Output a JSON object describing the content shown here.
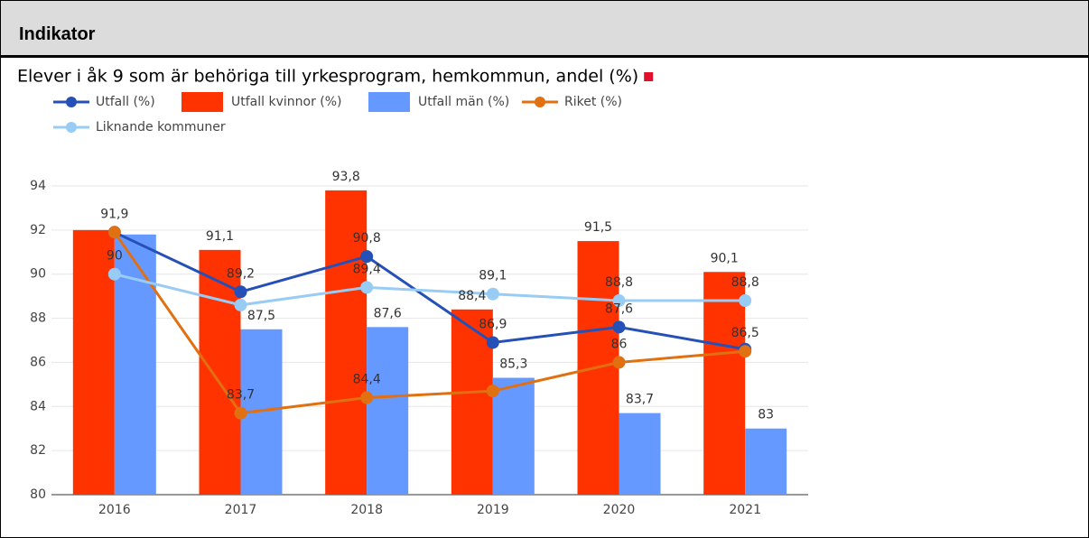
{
  "header": {
    "title": "Indikator"
  },
  "chart_data": {
    "type": "bar",
    "title": "Elever i åk 9 som är behöriga till yrkesprogram, hemkommun, andel (%)",
    "categories": [
      "2016",
      "2017",
      "2018",
      "2019",
      "2020",
      "2021"
    ],
    "series": [
      {
        "name": "Utfall (%)",
        "type": "line",
        "color": "#2550b8",
        "values": [
          91.9,
          89.2,
          90.8,
          86.9,
          87.6,
          86.6
        ],
        "value_labels": [
          "91,9",
          "89,2",
          "90,8",
          "86,9",
          "87,6",
          null
        ]
      },
      {
        "name": "Utfall kvinnor (%)",
        "type": "bar",
        "color": "#ff3300",
        "values": [
          92.0,
          91.1,
          93.8,
          88.4,
          91.5,
          90.1
        ],
        "value_labels": [
          null,
          "91,1",
          "93,8",
          "88,4",
          "91,5",
          "90,1"
        ]
      },
      {
        "name": "Utfall män (%)",
        "type": "bar",
        "color": "#6699ff",
        "values": [
          91.8,
          87.5,
          87.6,
          85.3,
          83.7,
          83
        ],
        "value_labels": [
          null,
          "87,5",
          "87,6",
          "85,3",
          "83,7",
          "83"
        ]
      },
      {
        "name": "Riket (%)",
        "type": "line",
        "color": "#e07010",
        "values": [
          91.9,
          83.7,
          84.4,
          84.7,
          86,
          86.5
        ],
        "value_labels": [
          null,
          "83,7",
          "84,4",
          null,
          "86",
          "86,5"
        ]
      },
      {
        "name": "Liknande kommuner",
        "type": "line",
        "color": "#99ccf5",
        "values": [
          90,
          88.6,
          89.4,
          89.1,
          88.8,
          88.8
        ],
        "value_labels": [
          "90",
          null,
          "89,4",
          "89,1",
          "88,8",
          "88,8"
        ]
      }
    ],
    "ylim": [
      80,
      94
    ],
    "yticks": [
      80,
      82,
      84,
      86,
      88,
      90,
      92,
      94
    ],
    "grid": true
  }
}
